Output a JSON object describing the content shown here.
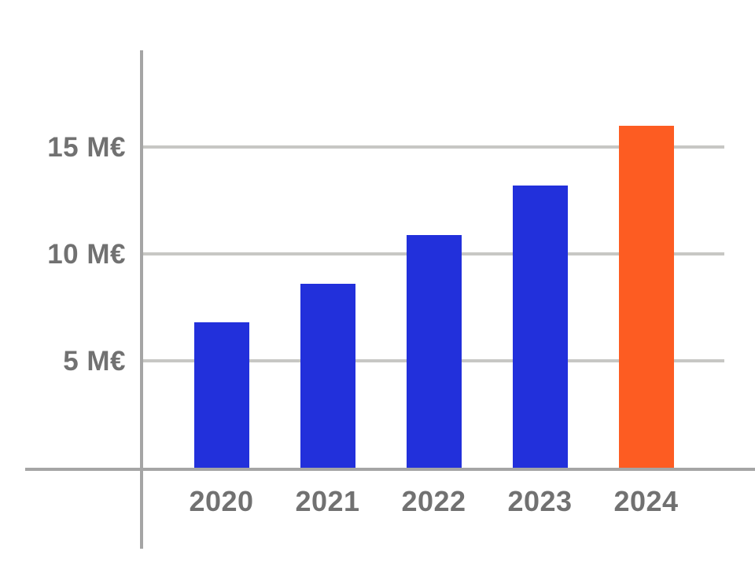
{
  "chart_data": {
    "type": "bar",
    "title": "",
    "categories": [
      "2020",
      "2021",
      "2022",
      "2023",
      "2024"
    ],
    "values": [
      6.8,
      8.6,
      10.9,
      13.2,
      16
    ],
    "unit": "M€",
    "y_ticks": [
      {
        "value": 5,
        "label": "5 M€"
      },
      {
        "value": 10,
        "label": "10 M€"
      },
      {
        "value": 15,
        "label": "15 M€"
      }
    ],
    "ylim": [
      0,
      19.5
    ],
    "grid": true,
    "legend": "none",
    "highlight_index": 4,
    "colors": {
      "bar_default": "#2230DB",
      "bar_highlight": "#FD5C22",
      "axis": "#A5A5A5",
      "gridline": "#C7C7C4",
      "label_text": "#717171",
      "background": "#FFFFFF"
    }
  }
}
